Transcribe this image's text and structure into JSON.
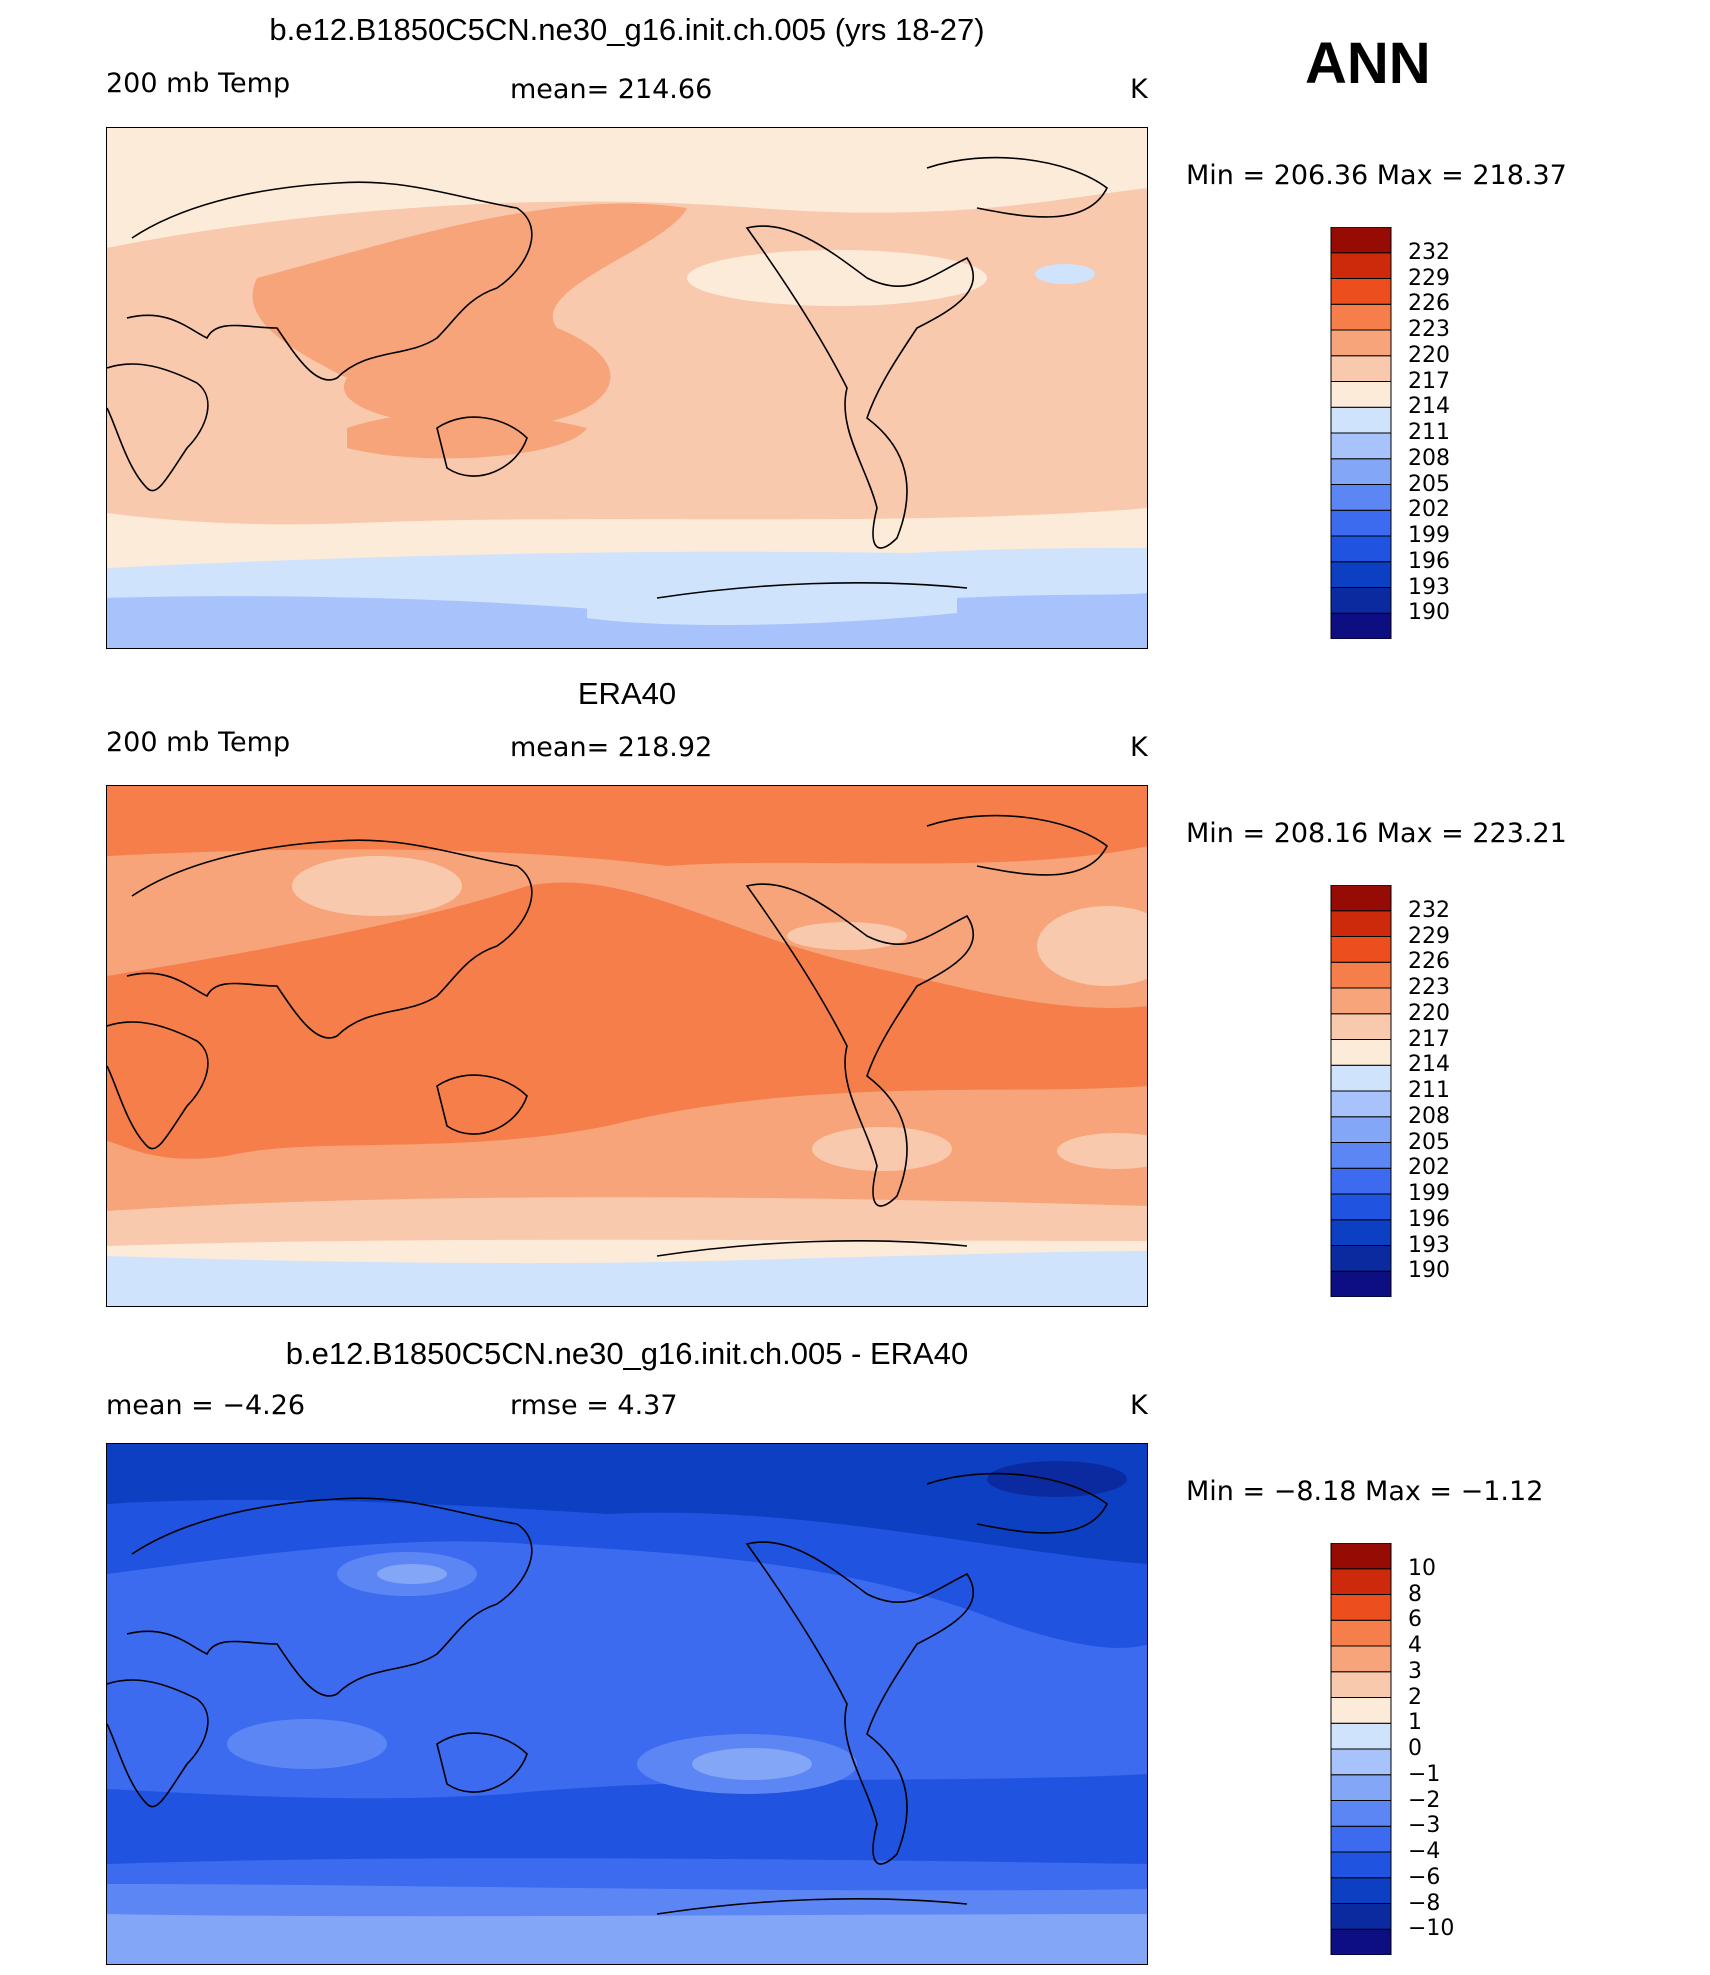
{
  "season": "ANN",
  "colors": {
    "levels": [
      "#0d0e82",
      "#0b2a9f",
      "#0c3fc2",
      "#1f53e0",
      "#3d6bf0",
      "#5d86f5",
      "#84a6f7",
      "#a8c3fb",
      "#cfe3fd",
      "#fdebd9",
      "#f9c9ad",
      "#f7a47a",
      "#f57e4b",
      "#ec4e1e",
      "#cc2a0b",
      "#960c05"
    ],
    "model_fill": {
      "pole": "#a8c3fb",
      "polar": "#cfe3fd",
      "mid": "#fdebd9",
      "trop": "#f9c9ad",
      "warm": "#f7a47a"
    },
    "obs_fill": {
      "south": "#cfe3fd",
      "mid": "#fdebd9",
      "sub": "#f9c9ad",
      "mid2": "#f7a47a",
      "trop": "#f57e4b"
    },
    "diff_fill": {
      "d1": "#84a6f7",
      "d2": "#5d86f5",
      "d3": "#3d6bf0",
      "d4": "#1f53e0",
      "d5": "#0c3fc2",
      "d6": "#0b2a9f"
    }
  },
  "chart_data": [
    {
      "type": "heatmap",
      "title": "b.e12.B1850C5CN.ne30_g16.init.ch.005 (yrs 18-27)",
      "left_label": "200 mb Temp",
      "center_label": "mean=  214.66",
      "units": "K",
      "stats": "Min  =  206.36  Max  =  218.37",
      "min": 206.36,
      "max": 218.37,
      "mean": 214.66,
      "colorbar_ticks": [
        "232",
        "229",
        "226",
        "223",
        "220",
        "217",
        "214",
        "211",
        "208",
        "205",
        "202",
        "199",
        "196",
        "193",
        "190"
      ]
    },
    {
      "type": "heatmap",
      "title": "ERA40",
      "left_label": "200 mb Temp",
      "center_label": "mean=  218.92",
      "units": "K",
      "stats": "Min  =  208.16  Max  =  223.21",
      "min": 208.16,
      "max": 223.21,
      "mean": 218.92,
      "colorbar_ticks": [
        "232",
        "229",
        "226",
        "223",
        "220",
        "217",
        "214",
        "211",
        "208",
        "205",
        "202",
        "199",
        "196",
        "193",
        "190"
      ]
    },
    {
      "type": "heatmap",
      "title": "b.e12.B1850C5CN.ne30_g16.init.ch.005 - ERA40",
      "left_label": "mean  =    −4.26",
      "center_label": "rmse  =     4.37",
      "units": "K",
      "stats": "Min  =    −8.18  Max  =    −1.12",
      "min": -8.18,
      "max": -1.12,
      "mean": -4.26,
      "rmse": 4.37,
      "colorbar_ticks": [
        "10",
        "8",
        "6",
        "4",
        "3",
        "2",
        "1",
        "0",
        "−1",
        "−2",
        "−3",
        "−4",
        "−6",
        "−8",
        "−10"
      ]
    }
  ]
}
